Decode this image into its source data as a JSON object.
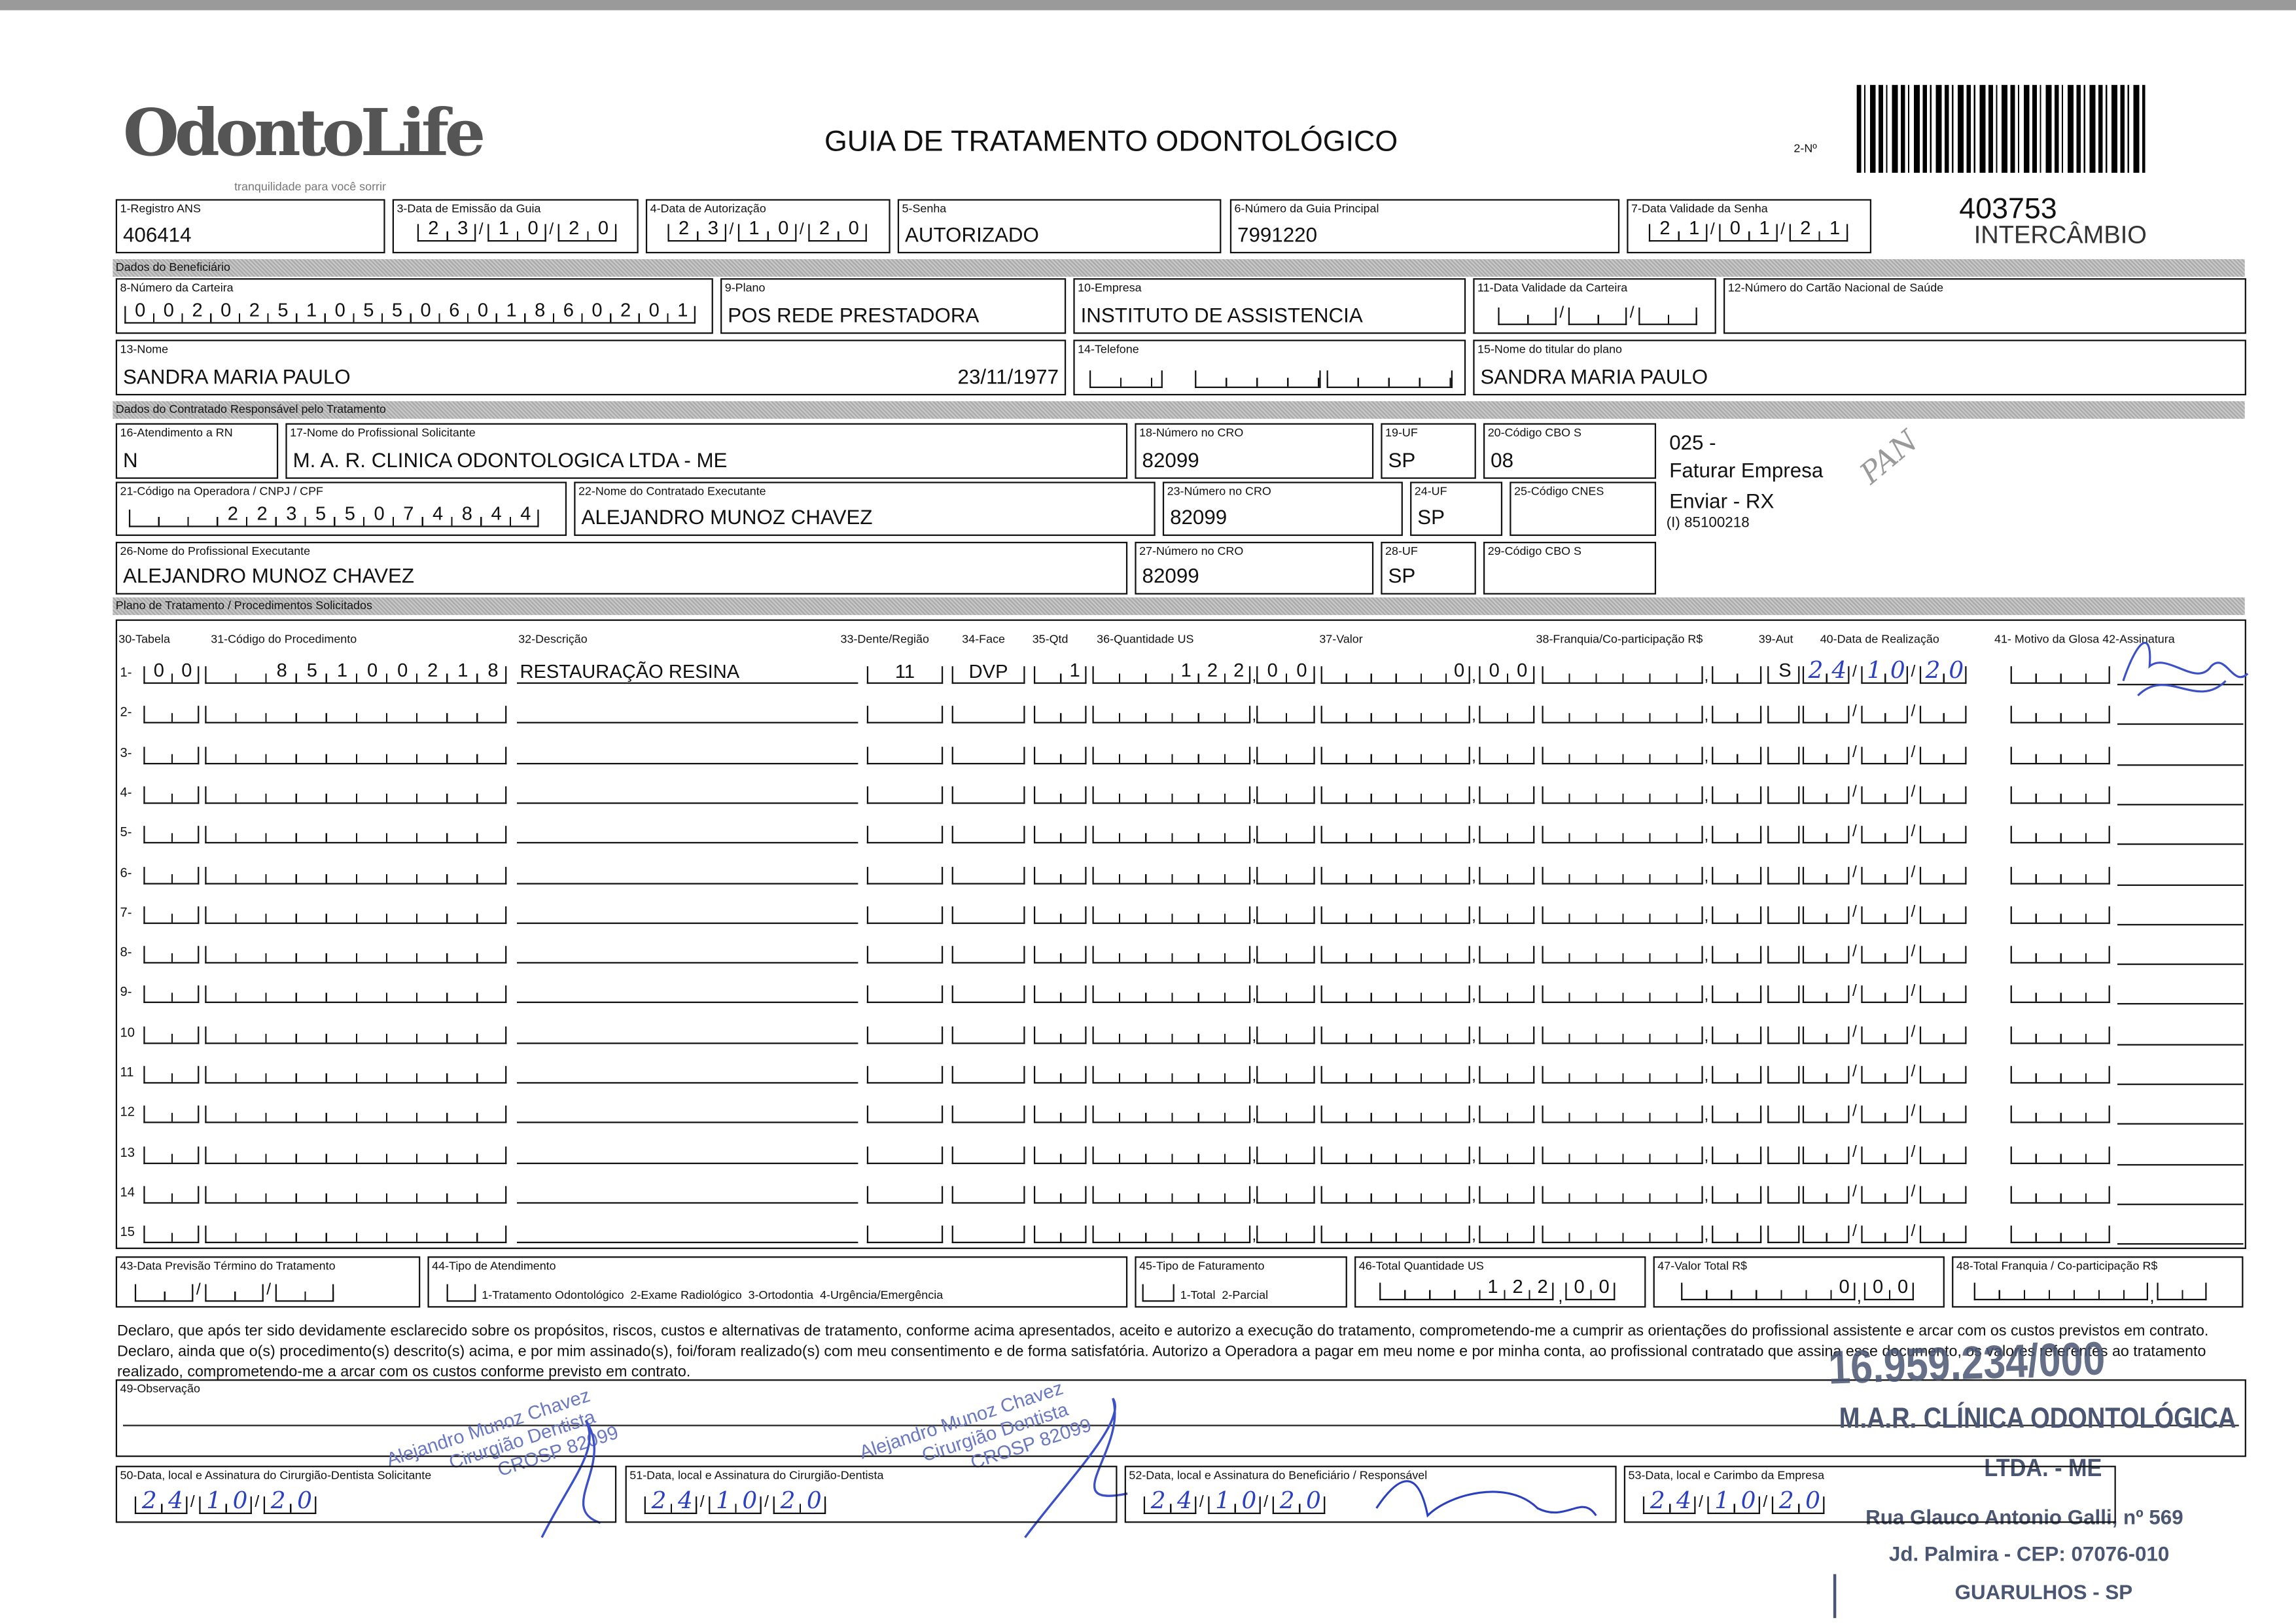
{
  "header": {
    "logo": "OdontoLife",
    "tagline": "tranquilidade para você sorrir",
    "title": "GUIA DE TRATAMENTO ODONTOLÓGICO",
    "numero_label": "2-Nº",
    "guide_code": "403753",
    "guide_type": "INTERCÂMBIO"
  },
  "row1": {
    "registro_ans": {
      "label": "1-Registro ANS",
      "value": "406414"
    },
    "data_emissao": {
      "label": "3-Data de Emissão da Guia",
      "value": [
        "23",
        "10",
        "20"
      ]
    },
    "data_autorizacao": {
      "label": "4-Data de Autorização",
      "value": [
        "23",
        "10",
        "20"
      ]
    },
    "senha": {
      "label": "5-Senha",
      "value": "AUTORIZADO"
    },
    "guia_principal": {
      "label": "6-Número da Guia Principal",
      "value": "7991220"
    },
    "validade_senha": {
      "label": "7-Data Validade da Senha",
      "value": [
        "21",
        "01",
        "21"
      ]
    }
  },
  "sections": {
    "beneficiario": "Dados do Beneficiário",
    "contratado": "Dados do Contratado Responsável pelo Tratamento",
    "plano": "Plano de Tratamento / Procedimentos Solicitados"
  },
  "beneficiario": {
    "carteira": {
      "label": "8-Número da Carteira",
      "value": "00202510550601860201"
    },
    "plano": {
      "label": "9-Plano",
      "value": "POS REDE PRESTADORA"
    },
    "empresa": {
      "label": "10-Empresa",
      "value": "INSTITUTO DE ASSISTENCIA"
    },
    "validade_carteira": {
      "label": "11-Data Validade da Carteira",
      "value": ""
    },
    "cns": {
      "label": "12-Número do Cartão Nacional de Saúde",
      "value": ""
    },
    "nome": {
      "label": "13-Nome",
      "value": "SANDRA MARIA PAULO",
      "birth": "23/11/1977"
    },
    "telefone": {
      "label": "14-Telefone",
      "value": ""
    },
    "titular": {
      "label": "15-Nome do titular do plano",
      "value": "SANDRA MARIA PAULO"
    }
  },
  "contratado": {
    "atendimento_rn": {
      "label": "16-Atendimento a RN",
      "value": "N"
    },
    "prof_solicitante": {
      "label": "17-Nome do Profissional Solicitante",
      "value": "M. A. R. CLINICA ODONTOLOGICA LTDA - ME"
    },
    "cro18": {
      "label": "18-Número no CRO",
      "value": "82099"
    },
    "uf19": {
      "label": "19-UF",
      "value": "SP"
    },
    "cbo20": {
      "label": "20-Código CBO S",
      "value": "08"
    },
    "cnpj": {
      "label": "21-Código na Operadora / CNPJ / CPF",
      "value": "22355074844"
    },
    "contratado_exec": {
      "label": "22-Nome do Contratado Executante",
      "value": "ALEJANDRO MUNOZ CHAVEZ"
    },
    "cro23": {
      "label": "23-Número no CRO",
      "value": "82099"
    },
    "uf24": {
      "label": "24-UF",
      "value": "SP"
    },
    "cnes": {
      "label": "25-Código CNES",
      "value": ""
    },
    "prof_exec": {
      "label": "26-Nome do Profissional Executante",
      "value": "ALEJANDRO MUNOZ CHAVEZ"
    },
    "cro27": {
      "label": "27-Número no CRO",
      "value": "82099"
    },
    "uf28": {
      "label": "28-UF",
      "value": "SP"
    },
    "cbo29": {
      "label": "29-Código CBO S",
      "value": ""
    }
  },
  "notes": {
    "code": "025 -",
    "line1": "Faturar Empresa",
    "line2": "Enviar - RX",
    "line3": "(I) 85100218",
    "initials": "PAN"
  },
  "table": {
    "headers": [
      "30-Tabela",
      "31-Código do Procedimento",
      "32-Descrição",
      "33-Dente/Região",
      "34-Face",
      "35-Qtd",
      "36-Quantidade US",
      "37-Valor",
      "38-Franquia/Co-participação R$",
      "39-Aut",
      "40-Data de Realização",
      "41- Motivo da Glosa 42-Assinatura"
    ],
    "rows": [
      {
        "n": "1-",
        "tabela": "00",
        "codigo": "85100218",
        "descricao": "RESTAURAÇÃO RESINA",
        "dente": "11",
        "face": "DVP",
        "qtd": "1",
        "us_int": "122",
        "us_dec": "00",
        "valor_int": "0",
        "valor_dec": "00",
        "aut": "S",
        "data": [
          "24",
          "10",
          "20"
        ],
        "assinatura": "signed"
      },
      {
        "n": "2-"
      },
      {
        "n": "3-"
      },
      {
        "n": "4-"
      },
      {
        "n": "5-"
      },
      {
        "n": "6-"
      },
      {
        "n": "7-"
      },
      {
        "n": "8-"
      },
      {
        "n": "9-"
      },
      {
        "n": "10"
      },
      {
        "n": "11"
      },
      {
        "n": "12"
      },
      {
        "n": "13"
      },
      {
        "n": "14"
      },
      {
        "n": "15"
      }
    ]
  },
  "totals": {
    "previsao": {
      "label": "43-Data Previsão Término do Tratamento"
    },
    "tipo_atendimento": {
      "label": "44-Tipo de Atendimento",
      "options": "1-Tratamento Odontológico  2-Exame Radiológico  3-Ortodontia  4-Urgência/Emergência"
    },
    "tipo_faturamento": {
      "label": "45-Tipo de Faturamento",
      "options": "1-Total  2-Parcial"
    },
    "total_us": {
      "label": "46-Total Quantidade US",
      "int": "122",
      "dec": "00"
    },
    "valor_total": {
      "label": "47-Valor Total R$",
      "int": "0",
      "dec": "00"
    },
    "total_franquia": {
      "label": "48-Total Franquia / Co-participação R$"
    }
  },
  "declaration": "Declaro, que após ter sido devidamente esclarecido sobre os propósitos, riscos, custos e alternativas de tratamento, conforme acima apresentados, aceito e autorizo a execução do tratamento, comprometendo-me a cumprir as orientações do profissional assistente e arcar com os custos previstos em contrato. Declaro, ainda que o(s) procedimento(s) descrito(s) acima, e por mim assinado(s), foi/foram realizado(s) com meu consentimento e de forma satisfatória. Autorizo a Operadora a pagar em meu nome e por minha conta, ao profissional contratado que assina esse documento, os valores referentes ao tratamento realizado, comprometendo-me a arcar com os custos conforme previsto em contrato.",
  "observacao_label": "49-Observação",
  "signatures": [
    {
      "label": "50-Data, local e Assinatura do Cirurgião-Dentista Solicitante",
      "date": [
        "24",
        "10",
        "20"
      ]
    },
    {
      "label": "51-Data, local e Assinatura do Cirurgião-Dentista",
      "date": [
        "24",
        "10",
        "20"
      ]
    },
    {
      "label": "52-Data, local e Assinatura do Beneficiário / Responsável",
      "date": [
        "24",
        "10",
        "20"
      ]
    },
    {
      "label": "53-Data, local e Carimbo da Empresa",
      "date": [
        "24",
        "10",
        "20"
      ]
    }
  ],
  "dentist_stamp": {
    "name": "Alejandro Munoz Chavez",
    "title": "Cirurgião Dentista",
    "cro": "CROSP 82099"
  },
  "company_stamp": {
    "cnpj": "16.959.234/000",
    "name": "M.A.R. CLÍNICA ODONTOLÓGICA",
    "suffix": "LTDA. - ME",
    "address": "Rua Glauco Antonio Galli, nº 569",
    "district": "Jd. Palmira - CEP: 07076-010",
    "city": "GUARULHOS - SP"
  },
  "colors": {
    "ink": "#111111",
    "pen": "#2b40c0",
    "stamp": "#4a5672",
    "section_bar": "#b8b8b8"
  }
}
